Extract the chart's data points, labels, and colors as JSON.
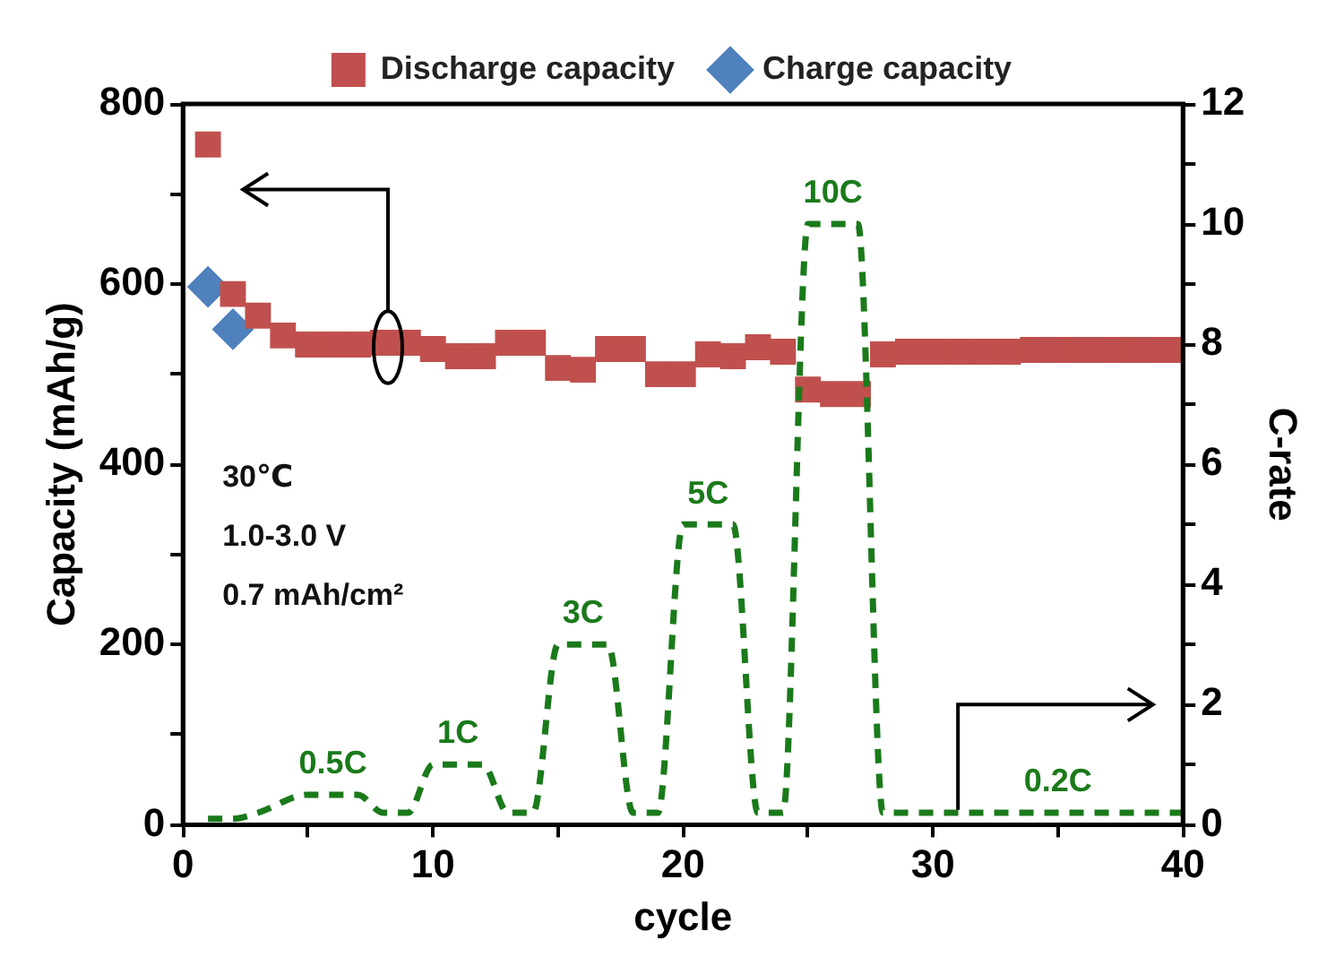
{
  "chart_data": {
    "type": "scatter",
    "xlabel": "cycle",
    "ylabel": "Capacity (mAh/g)",
    "y2label": "C-rate",
    "xlim": [
      0,
      40
    ],
    "xticks": [
      0,
      {
        "value": 5,
        "label": null
      },
      10,
      {
        "value": 15,
        "label": null
      },
      20,
      {
        "value": 25,
        "label": null
      },
      30,
      {
        "value": 35,
        "label": null
      },
      40
    ],
    "ylim": [
      0,
      800
    ],
    "yticks": [
      0,
      {
        "value": 100,
        "label": null
      },
      200,
      {
        "value": 300,
        "label": null
      },
      400,
      {
        "value": 500,
        "label": null
      },
      600,
      {
        "value": 700,
        "label": null
      },
      800
    ],
    "y2lim": [
      0,
      12
    ],
    "y2ticks": [
      0,
      {
        "value": 1,
        "label": null
      },
      2,
      {
        "value": 3,
        "label": null
      },
      4,
      {
        "value": 5,
        "label": null
      },
      6,
      {
        "value": 7,
        "label": null
      },
      8,
      {
        "value": 9,
        "label": null
      },
      10,
      {
        "value": 11,
        "label": null
      },
      12
    ],
    "legend": "top",
    "grid": false,
    "series": [
      {
        "name": "Discharge capacity",
        "marker": "square",
        "color": "#c0504d",
        "x": [
          1,
          2,
          3,
          4,
          5,
          6,
          7,
          8,
          9,
          10,
          11,
          12,
          13,
          14,
          15,
          16,
          17,
          18,
          19,
          20,
          21,
          22,
          23,
          24,
          25,
          26,
          27,
          28,
          29,
          30,
          31,
          32,
          33,
          34,
          35,
          36,
          37,
          38,
          39,
          40
        ],
        "values": [
          755,
          589,
          565,
          543,
          533,
          533,
          533,
          535,
          535,
          528,
          520,
          520,
          535,
          535,
          507,
          505,
          528,
          528,
          500,
          500,
          522,
          520,
          530,
          525,
          483,
          478,
          478,
          522,
          525,
          525,
          525,
          525,
          525,
          527,
          527,
          527,
          527,
          527,
          527,
          527
        ]
      },
      {
        "name": "Charge capacity",
        "marker": "diamond",
        "color": "#4f81bd",
        "x": [
          1,
          2
        ],
        "values": [
          597,
          550
        ]
      },
      {
        "type": "line",
        "axis": "y2",
        "marker": "none",
        "line_style": "dashed",
        "color": "#1a7a1a",
        "x": [
          1,
          2,
          3,
          5,
          7,
          8,
          9,
          10,
          12,
          13,
          14,
          15,
          17,
          18,
          19,
          20,
          22,
          23,
          24,
          25,
          27,
          28,
          40
        ],
        "values": [
          0.1,
          0.1,
          0.2,
          0.5,
          0.5,
          0.2,
          0.2,
          1,
          1,
          0.2,
          0.2,
          3,
          3,
          0.2,
          0.2,
          5,
          5,
          0.2,
          0.2,
          10,
          10,
          0.2,
          0.2
        ]
      }
    ],
    "annotations": [
      "30℃",
      "1.0-3.0 V",
      "0.7 mAh/cm²",
      {
        "text": "0.5C",
        "x": 6,
        "y": 33
      },
      {
        "text": "1C",
        "x": 11,
        "y": 67
      },
      {
        "text": "3C",
        "x": 16,
        "y": 200
      },
      {
        "text": "5C",
        "x": 21,
        "y": 333
      },
      {
        "text": "10C",
        "x": 26,
        "y": 667
      },
      {
        "text": "0.2C",
        "x": 35,
        "y": 13
      }
    ]
  }
}
